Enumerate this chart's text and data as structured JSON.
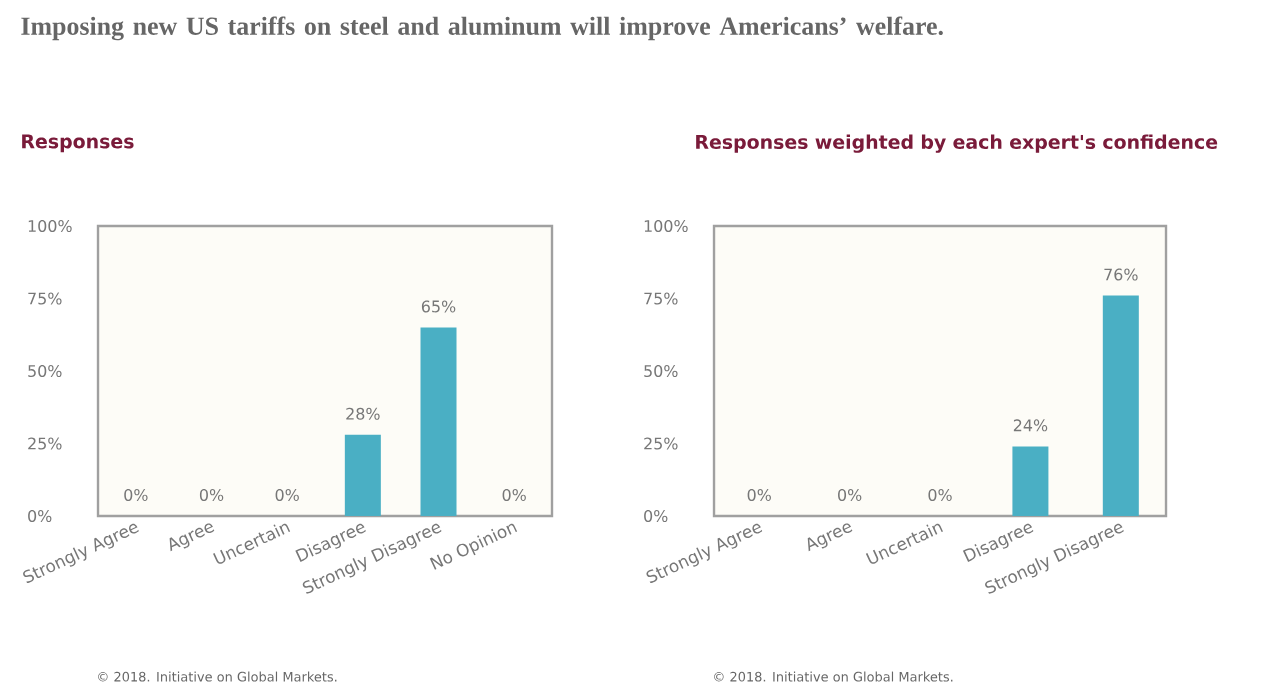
{
  "chart_data": [
    {
      "type": "bar",
      "title": "Imposing new US tariffs on steel and aluminum will improve Americans’ welfare.",
      "subtitle": "Responses",
      "categories": [
        "Strongly Agree",
        "Agree",
        "Uncertain",
        "Disagree",
        "Strongly Disagree",
        "No Opinion"
      ],
      "values": [
        0,
        0,
        0,
        28,
        65,
        0
      ],
      "value_labels": [
        "0%",
        "0%",
        "0%",
        "28%",
        "65%",
        "0%"
      ],
      "color": "#4aafc4",
      "ylim": [
        0,
        100
      ],
      "yticks": [
        {
          "value": 0,
          "label": "0%"
        },
        {
          "value": 25,
          "label": "25%"
        },
        {
          "value": 50,
          "label": "50%"
        },
        {
          "value": 75,
          "label": "75%"
        },
        {
          "value": 100,
          "label": "100%"
        }
      ],
      "annotations": [
        "© 2018. Initiative on Global Markets."
      ]
    },
    {
      "type": "bar",
      "title": "Responses weighted by each expert's confidence",
      "categories": [
        "Strongly Agree",
        "Agree",
        "Uncertain",
        "Disagree",
        "Strongly Disagree"
      ],
      "values": [
        0,
        0,
        0,
        24,
        76
      ],
      "value_labels": [
        "0%",
        "0%",
        "0%",
        "24%",
        "76%"
      ],
      "color": "#4aafc4",
      "ylim": [
        0,
        100
      ],
      "yticks": [
        {
          "value": 0,
          "label": "0%"
        },
        {
          "value": 25,
          "label": "25%"
        },
        {
          "value": 50,
          "label": "50%"
        },
        {
          "value": 75,
          "label": "75%"
        },
        {
          "value": 100,
          "label": "100%"
        }
      ],
      "annotations": [
        "© 2018. Initiative on Global Markets."
      ]
    }
  ]
}
